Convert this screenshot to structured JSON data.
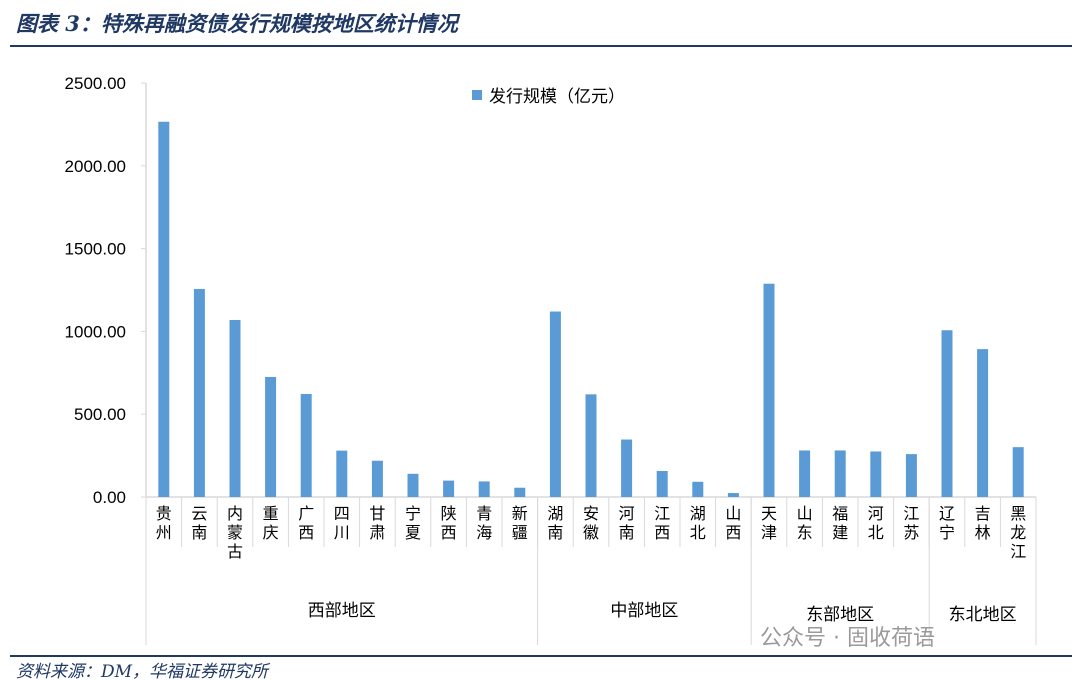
{
  "title": "图表 3：特殊再融资债发行规模按地区统计情况",
  "source": "资料来源：DM，华福证券研究所",
  "watermark": "公众号 · 固收荷语",
  "chart_data": {
    "type": "bar",
    "legend": {
      "position": "top",
      "entries": [
        "发行规模（亿元）"
      ]
    },
    "color": "#5b9bd5",
    "ylim": [
      0,
      2500
    ],
    "yticks": [
      "0.00",
      "500.00",
      "1000.00",
      "1500.00",
      "2000.00",
      "2500.00"
    ],
    "grid": false,
    "categories": [
      "贵州",
      "云南",
      "内蒙古",
      "重庆",
      "广西",
      "四川",
      "甘肃",
      "宁夏",
      "陕西",
      "青海",
      "新疆",
      "湖南",
      "安徽",
      "河南",
      "江西",
      "湖北",
      "山西",
      "天津",
      "山东",
      "福建",
      "河北",
      "江苏",
      "辽宁",
      "吉林",
      "黑龙江"
    ],
    "groups": [
      {
        "label": "西部地区",
        "count": 11
      },
      {
        "label": "中部地区",
        "count": 6
      },
      {
        "label": "东部地区",
        "count": 5
      },
      {
        "label": "东北地区",
        "count": 3
      }
    ],
    "series": [
      {
        "name": "发行规模（亿元）",
        "values": [
          2266,
          1256,
          1069,
          725,
          622,
          280,
          219,
          140,
          99,
          94,
          56,
          1120,
          620,
          347,
          157,
          92,
          24,
          1288,
          281,
          281,
          275,
          259,
          1007,
          893,
          301
        ]
      }
    ]
  }
}
